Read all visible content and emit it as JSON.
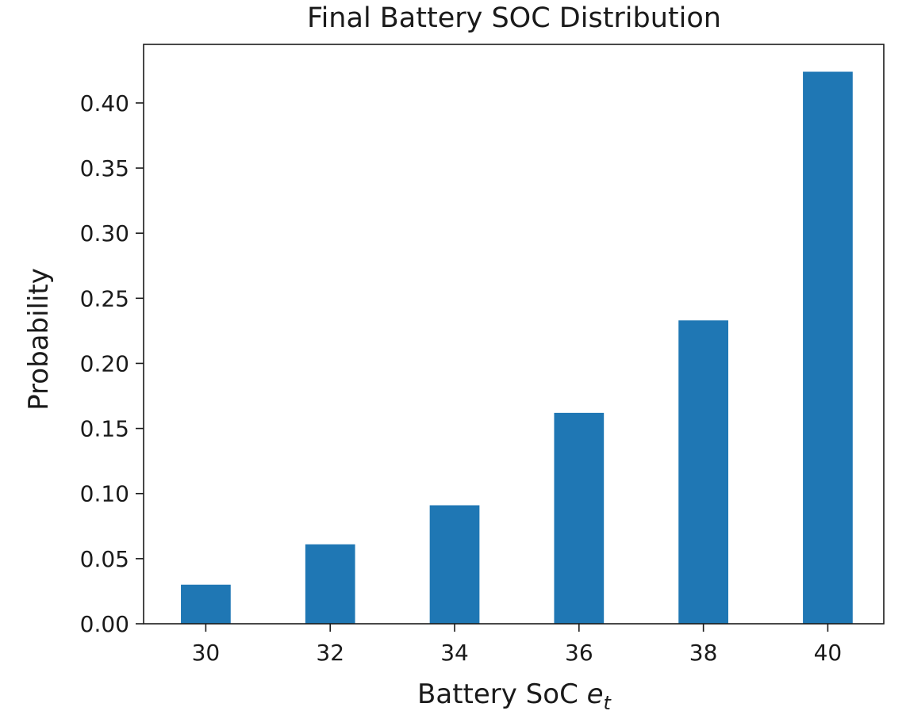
{
  "chart_data": {
    "type": "bar",
    "title": "Final Battery SOC Distribution",
    "xlabel_text": "Battery SoC ",
    "xlabel_var": "e",
    "xlabel_sub": "t",
    "ylabel": "Probability",
    "categories": [
      "30",
      "32",
      "34",
      "36",
      "38",
      "40"
    ],
    "x": [
      30,
      32,
      34,
      36,
      38,
      40
    ],
    "values": [
      0.03,
      0.061,
      0.091,
      0.162,
      0.233,
      0.424
    ],
    "xlim": [
      29.0,
      40.9
    ],
    "ylim": [
      0.0,
      0.445
    ],
    "yticks": [
      "0.00",
      "0.05",
      "0.10",
      "0.15",
      "0.20",
      "0.25",
      "0.30",
      "0.35",
      "0.40"
    ],
    "bar_color": "#1f77b4",
    "grid": false,
    "legend": "none"
  }
}
